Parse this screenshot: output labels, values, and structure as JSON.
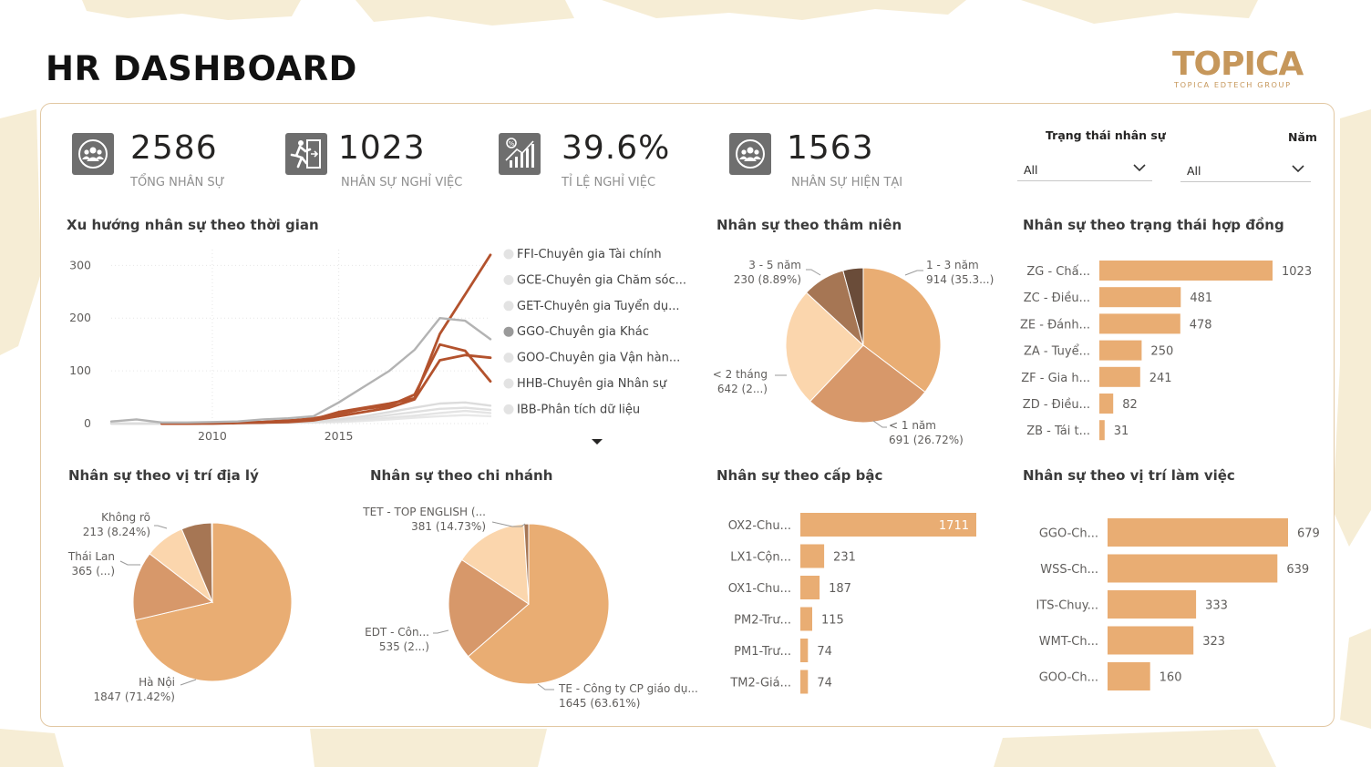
{
  "title": "HR DASHBOARD",
  "logo": {
    "name": "TOPICA",
    "tagline": "TOPICA EDTECH GROUP"
  },
  "colors": {
    "accent": "#e9ad73",
    "line_dark": "#b3522d",
    "line_grey": "#b3b3b3",
    "pie": [
      "#e9ad73",
      "#d7986a",
      "#fbd6ad",
      "#a67654",
      "#6a4c39"
    ],
    "panel_border": "#e2c8a3",
    "logo": "#c6975b"
  },
  "kpis": [
    {
      "value": "2586",
      "label": "TỔNG NHÂN SỰ",
      "icon": "people-group-icon"
    },
    {
      "value": "1023",
      "label": "NHÂN SỰ NGHỈ VIỆC",
      "icon": "exit-door-icon"
    },
    {
      "value": "39.6%",
      "label": "TỈ LỆ NGHỈ VIỆC",
      "icon": "rate-chart-icon"
    },
    {
      "value": "1563",
      "label": "NHÂN SỰ HIỆN TẠI",
      "icon": "people-group-icon"
    }
  ],
  "filters": [
    {
      "label": "Trạng thái nhân sự",
      "value": "All"
    },
    {
      "label": "Năm",
      "value": "All"
    }
  ],
  "visuals": {
    "trend": "Xu hướng nhân sự theo thời gian",
    "seniority": "Nhân sự theo thâm niên",
    "contract": "Nhân sự theo trạng thái hợp đồng",
    "geo": "Nhân sự theo vị trí địa lý",
    "branch": "Nhân sự theo chi nhánh",
    "level": "Nhân sự theo cấp bậc",
    "position": "Nhân sự theo vị trí làm việc"
  },
  "chart_data": [
    {
      "id": "trend",
      "type": "line",
      "x": [
        2006,
        2007,
        2008,
        2009,
        2010,
        2011,
        2012,
        2013,
        2014,
        2015,
        2016,
        2017,
        2018,
        2019,
        2020,
        2021
      ],
      "xticks": [
        2010,
        2015
      ],
      "yticks": [
        0,
        100,
        200,
        300
      ],
      "ylim": [
        0,
        330
      ],
      "legend": [
        "FFI-Chuyên gia Tài chính",
        "GCE-Chuyên gia Chăm sóc...",
        "GET-Chuyên gia Tuyển dụ...",
        "GGO-Chuyên gia Khác",
        "GOO-Chuyên gia Vận hàn...",
        "HHB-Chuyên gia Nhân sự",
        "IBB-Phân tích dữ liệu"
      ],
      "legend_highlight": 3,
      "series": [
        {
          "color": "#b3b3b3",
          "values": [
            4,
            8,
            2,
            2,
            3,
            4,
            8,
            10,
            14,
            40,
            70,
            100,
            140,
            200,
            195,
            160
          ]
        },
        {
          "color": "#b3522d",
          "values": [
            null,
            null,
            0,
            0,
            1,
            2,
            3,
            6,
            8,
            22,
            30,
            38,
            48,
            170,
            245,
            320
          ]
        },
        {
          "color": "#b3522d",
          "values": [
            null,
            null,
            0,
            0,
            1,
            2,
            2,
            5,
            10,
            18,
            28,
            34,
            55,
            150,
            138,
            80
          ]
        },
        {
          "color": "#b3522d",
          "values": [
            null,
            null,
            0,
            0,
            0,
            1,
            2,
            3,
            6,
            14,
            22,
            30,
            46,
            120,
            130,
            125
          ]
        },
        {
          "color": "#dcdcdc",
          "values": [
            0,
            0,
            0,
            0,
            0,
            1,
            2,
            3,
            4,
            8,
            14,
            22,
            30,
            38,
            40,
            34
          ]
        },
        {
          "color": "#e0e0e0",
          "values": [
            0,
            0,
            0,
            0,
            0,
            1,
            1,
            2,
            3,
            6,
            10,
            16,
            22,
            28,
            30,
            26
          ]
        },
        {
          "color": "#e4e4e4",
          "values": [
            0,
            0,
            0,
            0,
            0,
            0,
            1,
            2,
            2,
            4,
            7,
            11,
            15,
            20,
            24,
            20
          ]
        },
        {
          "color": "#e8e8e8",
          "values": [
            0,
            0,
            0,
            0,
            0,
            0,
            1,
            1,
            2,
            3,
            5,
            8,
            11,
            14,
            16,
            14
          ]
        }
      ]
    },
    {
      "id": "seniority",
      "type": "pie",
      "slices": [
        {
          "label": "1 - 3 năm",
          "value": 914,
          "text": "914 (35.3...)"
        },
        {
          "label": "< 1 năm",
          "value": 691,
          "text": "691 (26.72%)"
        },
        {
          "label": "< 2 tháng",
          "value": 642,
          "text": "642 (2...)"
        },
        {
          "label": "3 - 5 năm",
          "value": 230,
          "text": "230 (8.89%)"
        },
        {
          "label": "",
          "value": 109,
          "text": ""
        }
      ]
    },
    {
      "id": "contract",
      "type": "bar",
      "orientation": "horizontal",
      "max": 1023,
      "categories": [
        "ZG - Chấ...",
        "ZC - Điều...",
        "ZE - Đánh...",
        "ZA - Tuyể...",
        "ZF - Gia h...",
        "ZD - Điều...",
        "ZB - Tái t..."
      ],
      "values": [
        1023,
        481,
        478,
        250,
        241,
        82,
        31
      ]
    },
    {
      "id": "geo",
      "type": "pie",
      "slices": [
        {
          "label": "Hà Nội",
          "value": 1847,
          "text": "1847 (71.42%)"
        },
        {
          "label": "Thái Lan",
          "value": 365,
          "text": "365 (...)"
        },
        {
          "label": "Không rõ",
          "value": 213,
          "text": "213 (8.24%)"
        },
        {
          "label": "",
          "value": 160,
          "text": ""
        },
        {
          "label": "",
          "value": 4,
          "text": ""
        }
      ]
    },
    {
      "id": "branch",
      "type": "pie",
      "slices": [
        {
          "label": "TE - Công ty CP giáo dụ...",
          "value": 1645,
          "text": "1645 (63.61%)"
        },
        {
          "label": "EDT - Côn...",
          "value": 535,
          "text": "535 (2...)"
        },
        {
          "label": "TET - TOP ENGLISH (...",
          "value": 381,
          "text": "381 (14.73%)"
        },
        {
          "label": "",
          "value": 25,
          "text": ""
        }
      ]
    },
    {
      "id": "level",
      "type": "bar",
      "orientation": "horizontal",
      "max": 1711,
      "categories": [
        "OX2-Chu...",
        "LX1-Cộn...",
        "OX1-Chu...",
        "PM2-Trư...",
        "PM1-Trư...",
        "TM2-Giá..."
      ],
      "values": [
        1711,
        231,
        187,
        115,
        74,
        74
      ]
    },
    {
      "id": "position",
      "type": "bar",
      "orientation": "horizontal",
      "max": 679,
      "categories": [
        "GGO-Ch...",
        "WSS-Ch...",
        "ITS-Chuy...",
        "WMT-Ch...",
        "GOO-Ch..."
      ],
      "values": [
        679,
        639,
        333,
        323,
        160
      ]
    }
  ]
}
